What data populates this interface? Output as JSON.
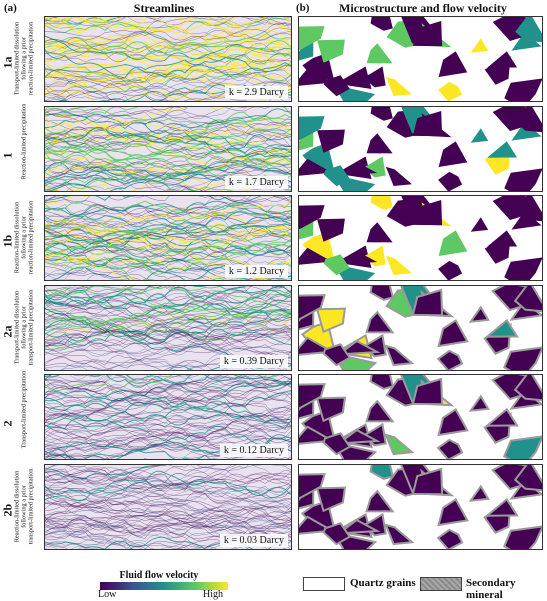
{
  "panels": {
    "a": {
      "letter": "(a)",
      "title": "Streamlines"
    },
    "b": {
      "letter": "(b)",
      "title": "Microstructure and flow velocity"
    }
  },
  "rows": [
    {
      "id": "1a",
      "desc1": "Transport-limited dissolution",
      "desc2": "following a prior",
      "desc3": "reaction-limited precipitation",
      "permeability": "k = 2.9 Darcy",
      "flow_level": 1.0
    },
    {
      "id": "1",
      "desc1": "Reaction-limited precipitation",
      "desc2": "",
      "desc3": "",
      "permeability": "k = 1.7 Darcy",
      "flow_level": 0.75
    },
    {
      "id": "1b",
      "desc1": "Reaction-limited dissolution",
      "desc2": "following a prior",
      "desc3": "reaction-limited precipitation",
      "permeability": "k = 1.2 Darcy",
      "flow_level": 0.85
    },
    {
      "id": "2a",
      "desc1": "Transport-limited dissolution",
      "desc2": "following a prior",
      "desc3": "transport-limited precipitation",
      "permeability": "k = 0.39 Darcy",
      "flow_level": 0.55
    },
    {
      "id": "2",
      "desc1": "Transport-limited precipitation",
      "desc2": "",
      "desc3": "",
      "permeability": "k = 0.12 Darcy",
      "flow_level": 0.2
    },
    {
      "id": "2b",
      "desc1": "Reaction-limited dissolution",
      "desc2": "following a prior",
      "desc3": "transport-limited precipitation",
      "permeability": "k = 0.03 Darcy",
      "flow_level": 0.1
    }
  ],
  "colorbar": {
    "title": "Fluid flow velocity",
    "low": "Low",
    "high": "High",
    "colors": [
      "#440154",
      "#3b528b",
      "#21918c",
      "#5ec962",
      "#fde725"
    ]
  },
  "legend": [
    {
      "label": "Quartz grains",
      "color": "#ffffff"
    },
    {
      "label": "Secondary mineral",
      "color": "#9a9a9a"
    }
  ]
}
